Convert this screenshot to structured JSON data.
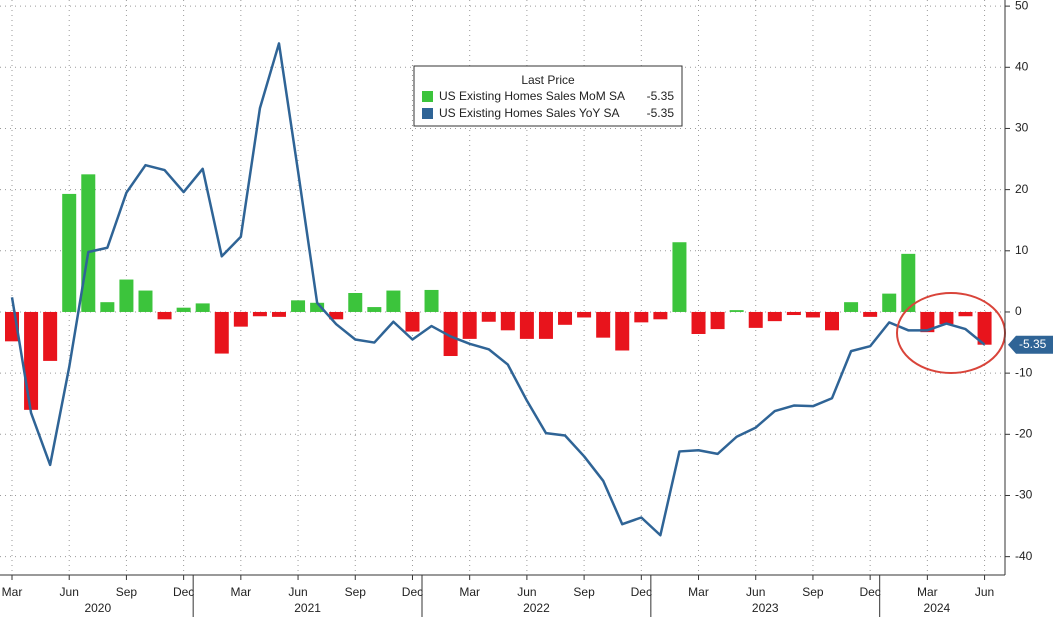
{
  "chart_data": {
    "type": "bar",
    "legend_title": "Last Price",
    "categories": [
      "2020-03",
      "2020-04",
      "2020-05",
      "2020-06",
      "2020-07",
      "2020-08",
      "2020-09",
      "2020-10",
      "2020-11",
      "2020-12",
      "2021-01",
      "2021-02",
      "2021-03",
      "2021-04",
      "2021-05",
      "2021-06",
      "2021-07",
      "2021-08",
      "2021-09",
      "2021-10",
      "2021-11",
      "2021-12",
      "2022-01",
      "2022-02",
      "2022-03",
      "2022-04",
      "2022-05",
      "2022-06",
      "2022-07",
      "2022-08",
      "2022-09",
      "2022-10",
      "2022-11",
      "2022-12",
      "2023-01",
      "2023-02",
      "2023-03",
      "2023-04",
      "2023-05",
      "2023-06",
      "2023-07",
      "2023-08",
      "2023-09",
      "2023-10",
      "2023-11",
      "2023-12",
      "2024-01",
      "2024-02",
      "2024-03",
      "2024-04",
      "2024-05",
      "2024-06"
    ],
    "series": [
      {
        "name": "US Existing Homes Sales MoM SA",
        "type": "bar",
        "color": "#3cc43c",
        "negative_color": "#e8141c",
        "last_price": -5.35,
        "values": [
          -4.8,
          -16.0,
          -8.0,
          19.3,
          22.5,
          1.6,
          5.3,
          3.5,
          -1.2,
          0.7,
          1.4,
          -6.8,
          -2.4,
          -0.7,
          -0.8,
          1.9,
          1.5,
          -1.2,
          3.1,
          0.8,
          3.5,
          -3.2,
          3.6,
          -7.2,
          -4.4,
          -1.6,
          -3.0,
          -4.4,
          -4.4,
          -2.1,
          -0.9,
          -4.2,
          -6.3,
          -1.7,
          -1.2,
          11.4,
          -3.6,
          -2.8,
          0.3,
          -2.6,
          -1.5,
          -0.5,
          -0.9,
          -3.0,
          1.6,
          -0.8,
          3.0,
          9.5,
          -3.3,
          -2.0,
          -0.7,
          -5.35
        ]
      },
      {
        "name": "US Existing Homes Sales YoY SA",
        "type": "line",
        "color": "#2f6496",
        "last_price": -5.35,
        "values": [
          2.4,
          -16.5,
          -25.0,
          -9.0,
          9.8,
          10.5,
          19.5,
          24.0,
          23.2,
          19.6,
          23.4,
          9.1,
          12.3,
          33.3,
          43.9,
          23.0,
          1.5,
          -2.0,
          -4.5,
          -5.0,
          -1.6,
          -4.5,
          -2.3,
          -4.0,
          -5.2,
          -6.1,
          -8.6,
          -14.5,
          -19.8,
          -20.2,
          -23.6,
          -27.6,
          -34.7,
          -33.6,
          -36.5,
          -22.8,
          -22.6,
          -23.2,
          -20.4,
          -18.9,
          -16.2,
          -15.3,
          -15.4,
          -14.1,
          -6.4,
          -5.6,
          -1.7,
          -3.0,
          -3.0,
          -1.9,
          -2.8,
          -5.35
        ]
      }
    ],
    "ylim": [
      -43,
      51
    ],
    "yticks": [
      50,
      40,
      30,
      20,
      10,
      0,
      -10,
      -20,
      -30,
      -40
    ],
    "xticks": [
      {
        "value": "2020-03",
        "label": "Mar"
      },
      {
        "value": "2020-06",
        "label": "Jun"
      },
      {
        "value": "2020-09",
        "label": "Sep"
      },
      {
        "value": "2020-12",
        "label": "Dec"
      },
      {
        "value": "2021-03",
        "label": "Mar"
      },
      {
        "value": "2021-06",
        "label": "Jun"
      },
      {
        "value": "2021-09",
        "label": "Sep"
      },
      {
        "value": "2021-12",
        "label": "Dec"
      },
      {
        "value": "2022-03",
        "label": "Mar"
      },
      {
        "value": "2022-06",
        "label": "Jun"
      },
      {
        "value": "2022-09",
        "label": "Sep"
      },
      {
        "value": "2022-12",
        "label": "Dec"
      },
      {
        "value": "2023-03",
        "label": "Mar"
      },
      {
        "value": "2023-06",
        "label": "Jun"
      },
      {
        "value": "2023-09",
        "label": "Sep"
      },
      {
        "value": "2023-12",
        "label": "Dec"
      },
      {
        "value": "2024-03",
        "label": "Mar"
      },
      {
        "value": "2024-06",
        "label": "Jun"
      }
    ],
    "year_labels": [
      "2020",
      "2021",
      "2022",
      "2023",
      "2024"
    ],
    "grid": true
  }
}
